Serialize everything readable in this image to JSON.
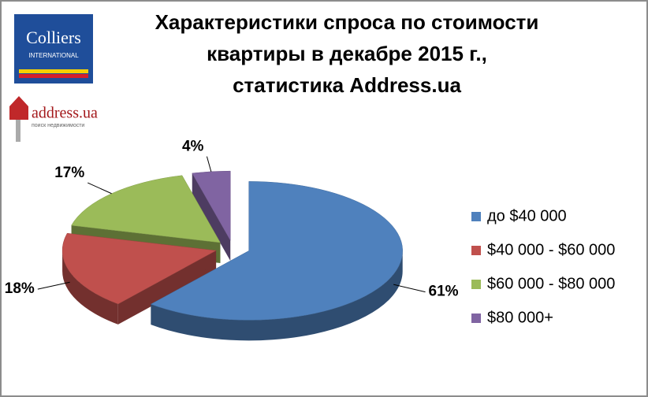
{
  "logos": {
    "colliers": "Colliers",
    "colliers_sub": "INTERNATIONAL",
    "address": "address.ua",
    "address_sub": "поиск недвижимости"
  },
  "chart_data": {
    "type": "pie",
    "title": [
      "Характеристики спроса по стоимости",
      "квартиры в декабре 2015 г.,",
      "статистика Address.ua"
    ],
    "categories": [
      "до $40 000",
      "$40 000 - $60 000",
      "$60 000 - $80 000",
      "$80 000+"
    ],
    "values": [
      61,
      18,
      17,
      4
    ],
    "value_labels": [
      "61%",
      "18%",
      "17%",
      "4%"
    ],
    "colors": [
      "#4f81bd",
      "#c0504d",
      "#9bbb59",
      "#8064a2"
    ],
    "legend": "right"
  }
}
